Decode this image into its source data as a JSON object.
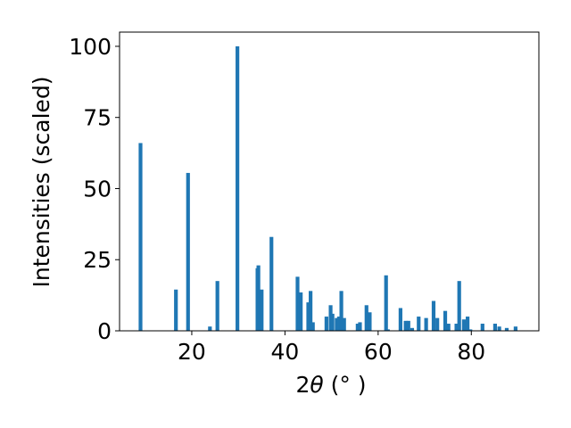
{
  "chart_data": {
    "type": "bar",
    "title": "",
    "xlabel_parts": {
      "prefix": "2",
      "symbol": "θ",
      "unit": " (° )"
    },
    "ylabel": "Intensities (scaled)",
    "xlim": [
      4.5,
      94.5
    ],
    "ylim": [
      0,
      105
    ],
    "x_ticks": [
      20,
      40,
      60,
      80
    ],
    "y_ticks": [
      0,
      25,
      50,
      75,
      100
    ],
    "grid": false,
    "legend": "none",
    "bar_width_data": 0.8,
    "color": "#1f77b4",
    "x": [
      9.0,
      16.6,
      19.2,
      23.9,
      25.5,
      29.8,
      34.1,
      34.3,
      35.0,
      37.1,
      42.7,
      43.4,
      45.0,
      45.5,
      46.0,
      48.9,
      49.8,
      50.2,
      51.1,
      51.6,
      52.1,
      52.7,
      55.6,
      56.1,
      57.5,
      58.2,
      61.7,
      62.1,
      64.8,
      65.9,
      66.5,
      67.3,
      68.7,
      70.3,
      71.9,
      72.7,
      74.4,
      75.1,
      76.8,
      77.4,
      78.4,
      79.2,
      79.8,
      82.4,
      85.1,
      86.0,
      87.6,
      89.5
    ],
    "values": [
      66,
      14.5,
      55.5,
      1.5,
      17.5,
      100,
      22,
      23,
      14.5,
      33,
      19,
      13.5,
      10,
      14,
      3,
      5,
      9,
      6,
      4.5,
      5,
      14,
      4.5,
      2.5,
      3,
      9,
      6.5,
      19.5,
      0.5,
      8,
      3.5,
      3.5,
      1,
      5,
      4.5,
      10.5,
      4.5,
      7,
      2.5,
      2.5,
      17.5,
      4,
      5,
      0.5,
      2.5,
      2.5,
      1.5,
      1,
      1.5
    ]
  }
}
